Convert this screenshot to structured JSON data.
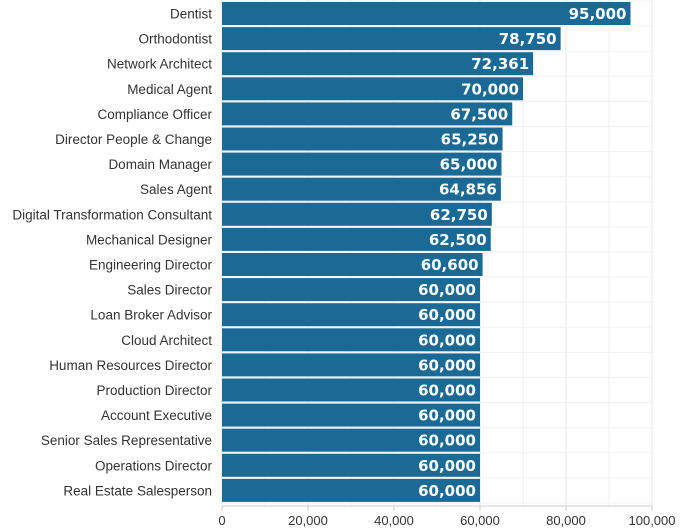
{
  "chart_data": {
    "type": "bar",
    "orientation": "horizontal",
    "categories": [
      "Dentist",
      "Orthodontist",
      "Network Architect",
      "Medical Agent",
      "Compliance Officer",
      "Director People & Change",
      "Domain Manager",
      "Sales Agent",
      "Digital Transformation Consultant",
      "Mechanical Designer",
      "Engineering Director",
      "Sales Director",
      "Loan Broker Advisor",
      "Cloud Architect",
      "Human Resources Director",
      "Production Director",
      "Account Executive",
      "Senior Sales Representative",
      "Operations Director",
      "Real Estate Salesperson"
    ],
    "values": [
      95000,
      78750,
      72361,
      70000,
      67500,
      65250,
      65000,
      64856,
      62750,
      62500,
      60600,
      60000,
      60000,
      60000,
      60000,
      60000,
      60000,
      60000,
      60000,
      60000
    ],
    "value_labels": [
      "95,000",
      "78,750",
      "72,361",
      "70,000",
      "67,500",
      "65,250",
      "65,000",
      "64,856",
      "62,750",
      "62,500",
      "60,600",
      "60,000",
      "60,000",
      "60,000",
      "60,000",
      "60,000",
      "60,000",
      "60,000",
      "60,000",
      "60,000"
    ],
    "x_ticks": [
      0,
      20000,
      40000,
      60000,
      80000,
      100000
    ],
    "x_tick_labels": [
      "0",
      "20,000",
      "40,000",
      "60,000",
      "80,000",
      "100,000"
    ],
    "xlim": [
      0,
      100000
    ],
    "title": "",
    "xlabel": "",
    "ylabel": "",
    "grid": true,
    "bar_color": "#1b6a96",
    "value_label_color": "#ffffff"
  }
}
